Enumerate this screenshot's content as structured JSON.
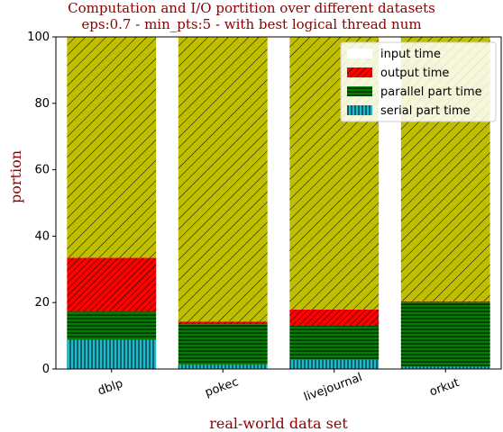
{
  "chart_data": {
    "type": "bar",
    "stacked": true,
    "title": "Computation and I/O portition over different datasets",
    "subtitle": "eps:0.7 - min_pts:5 - with best logical thread num",
    "xlabel": "real-world data set",
    "ylabel": "portion",
    "ylim": [
      0,
      100
    ],
    "yticks": [
      "0",
      "20",
      "40",
      "60",
      "80",
      "100"
    ],
    "categories": [
      "dblp",
      "pokec",
      "livejournal",
      "orkut"
    ],
    "legend_position": "top-right",
    "series": [
      {
        "name": "serial part time",
        "values": [
          8.8,
          1.3,
          2.8,
          0.7
        ],
        "color": "#17becf",
        "hatch": "vertical"
      },
      {
        "name": "parallel part time",
        "values": [
          8.5,
          12.2,
          10.2,
          19.3
        ],
        "color": "#008000",
        "hatch": "horizontal"
      },
      {
        "name": "output time",
        "values": [
          16.2,
          0.8,
          4.9,
          0.4
        ],
        "color": "#ff0000",
        "hatch": "diagonal-dense"
      },
      {
        "name": "input time",
        "values": [
          66.5,
          85.7,
          82.1,
          79.6
        ],
        "color": "#bfbf00",
        "hatch": "diagonal"
      }
    ]
  }
}
